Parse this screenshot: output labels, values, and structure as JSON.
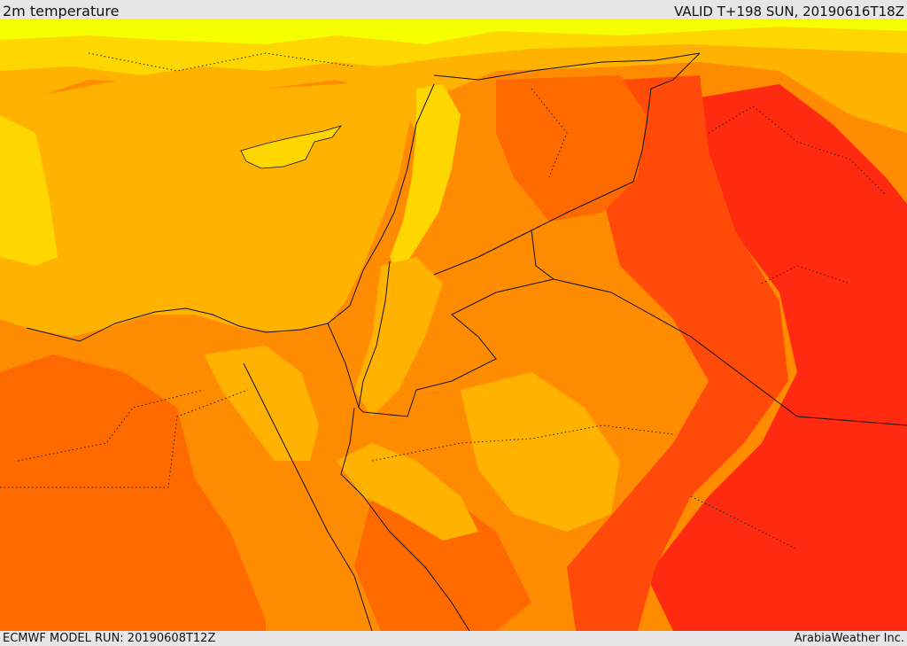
{
  "header": {
    "title": "2m temperature",
    "valid": "VALID T+198 SUN, 20190616T18Z"
  },
  "footer": {
    "model_run": "ECMWF MODEL RUN: 20190608T12Z",
    "brand": "ArabiaWeather Inc."
  },
  "map": {
    "field": "2m temperature",
    "region": "Eastern Mediterranean / Levant / Arabian Peninsula",
    "palette": {
      "coolest": "#f5ff00",
      "cool": "#ffd700",
      "mild": "#ffb300",
      "warm": "#ff8c00",
      "hot": "#ff6a00",
      "hotter": "#ff4a0a",
      "hottest": "#ff2a10"
    }
  }
}
